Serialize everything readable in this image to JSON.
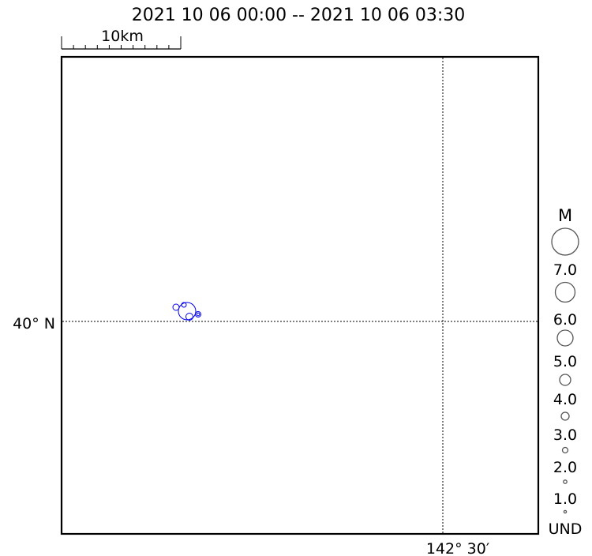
{
  "title": "2021 10 06 00:00 -- 2021 10 06 03:30",
  "scale_bar": {
    "label": "10km"
  },
  "grid": {
    "latitude_label": "40° N",
    "longitude_label": "142° 30′"
  },
  "legend": {
    "title": "M",
    "items": [
      {
        "label": "7.0",
        "magnitude": 7
      },
      {
        "label": "6.0",
        "magnitude": 6
      },
      {
        "label": "5.0",
        "magnitude": 5
      },
      {
        "label": "4.0",
        "magnitude": 4
      },
      {
        "label": "3.0",
        "magnitude": 3
      },
      {
        "label": "2.0",
        "magnitude": 2
      },
      {
        "label": "1.0",
        "magnitude": 1
      },
      {
        "label": "UND",
        "magnitude": 0
      }
    ]
  },
  "colors": {
    "event": "#0000ee",
    "legend_circle": "#555555",
    "frame": "#000000",
    "grid": "#000000"
  },
  "events_count_shown": 5
}
